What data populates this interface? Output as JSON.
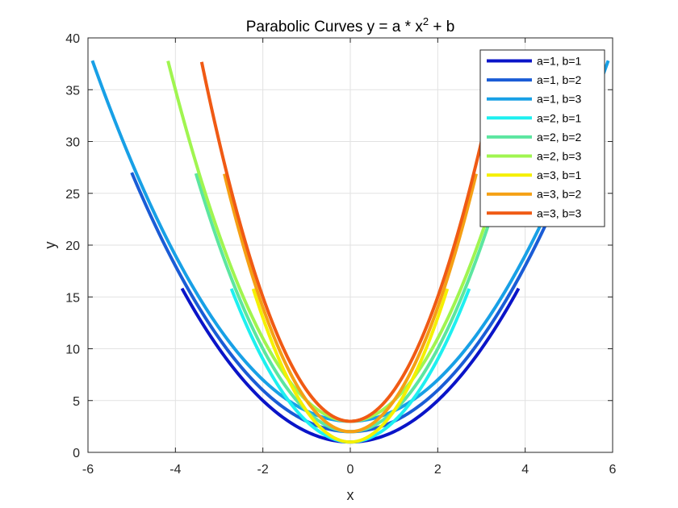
{
  "chart_data": {
    "type": "line",
    "title": {
      "prefix": "Parabolic Curves y = a * x",
      "superscript": "2",
      "suffix": " + b"
    },
    "xlabel": "x",
    "ylabel": "y",
    "xlim": [
      -6,
      6
    ],
    "ylim": [
      0,
      40
    ],
    "xticks": [
      -6,
      -4,
      -2,
      0,
      2,
      4,
      6
    ],
    "yticks": [
      0,
      5,
      10,
      15,
      20,
      25,
      30,
      35,
      40
    ],
    "xtick_labels": [
      "-6",
      "-4",
      "-2",
      "0",
      "2",
      "4",
      "6"
    ],
    "ytick_labels": [
      "0",
      "5",
      "10",
      "15",
      "20",
      "25",
      "30",
      "35",
      "40"
    ],
    "grid": true,
    "legend_position": "top-right",
    "series": [
      {
        "name": "a=1, b=1",
        "a": 1,
        "b": 1,
        "x_range": [
          -3.85,
          3.85
        ],
        "color": "#0a14c8"
      },
      {
        "name": "a=1, b=2",
        "a": 1,
        "b": 2,
        "x_range": [
          -5.0,
          5.0
        ],
        "color": "#1a5cd6"
      },
      {
        "name": "a=1, b=3",
        "a": 1,
        "b": 3,
        "x_range": [
          -5.9,
          5.9
        ],
        "color": "#18a0e6"
      },
      {
        "name": "a=2, b=1",
        "a": 2,
        "b": 1,
        "x_range": [
          -2.72,
          2.72
        ],
        "color": "#1ef0f0"
      },
      {
        "name": "a=2, b=2",
        "a": 2,
        "b": 2,
        "x_range": [
          -3.53,
          3.53
        ],
        "color": "#5ce6a0"
      },
      {
        "name": "a=2, b=3",
        "a": 2,
        "b": 3,
        "x_range": [
          -4.17,
          4.17
        ],
        "color": "#a0f550"
      },
      {
        "name": "a=3, b=1",
        "a": 3,
        "b": 1,
        "x_range": [
          -2.22,
          2.22
        ],
        "color": "#f5f000"
      },
      {
        "name": "a=3, b=2",
        "a": 3,
        "b": 2,
        "x_range": [
          -2.88,
          2.88
        ],
        "color": "#f5a014"
      },
      {
        "name": "a=3, b=3",
        "a": 3,
        "b": 3,
        "x_range": [
          -3.4,
          3.4
        ],
        "color": "#f05a14"
      }
    ]
  }
}
